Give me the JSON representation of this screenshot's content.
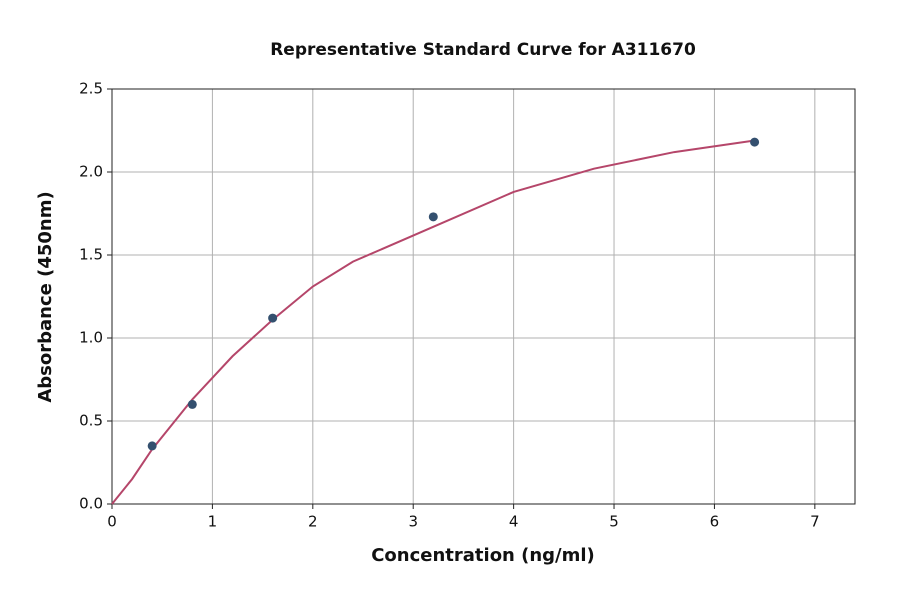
{
  "chart_data": {
    "type": "scatter",
    "title": "Representative Standard Curve for A311670",
    "x_label": "Concentration (ng/ml)",
    "y_label": "Absorbance (450nm)",
    "points": {
      "color": "#34506f",
      "x": [
        0.4,
        0.8,
        1.6,
        3.2,
        6.4
      ],
      "values": [
        0.35,
        0.6,
        1.12,
        1.73,
        2.18
      ]
    },
    "curve": {
      "color": "#b5466a",
      "x": [
        0,
        0.2,
        0.4,
        0.8,
        1.2,
        1.6,
        2,
        2.4,
        3.2,
        4,
        4.8,
        5.6,
        6.4
      ],
      "values": [
        0,
        0.15,
        0.33,
        0.63,
        0.89,
        1.11,
        1.31,
        1.46,
        1.67,
        1.88,
        2.02,
        2.12,
        2.19
      ]
    },
    "xlim": [
      0,
      7.4
    ],
    "xticks": [
      0,
      1,
      2,
      3,
      4,
      5,
      6,
      7
    ],
    "ylim": [
      0,
      2.5
    ],
    "yticks": [
      {
        "value": 0,
        "label": "0.0"
      },
      0.5,
      {
        "value": 1,
        "label": "1.0"
      },
      1.5,
      {
        "value": 2,
        "label": "2.0"
      },
      2.5
    ],
    "grid": true
  }
}
